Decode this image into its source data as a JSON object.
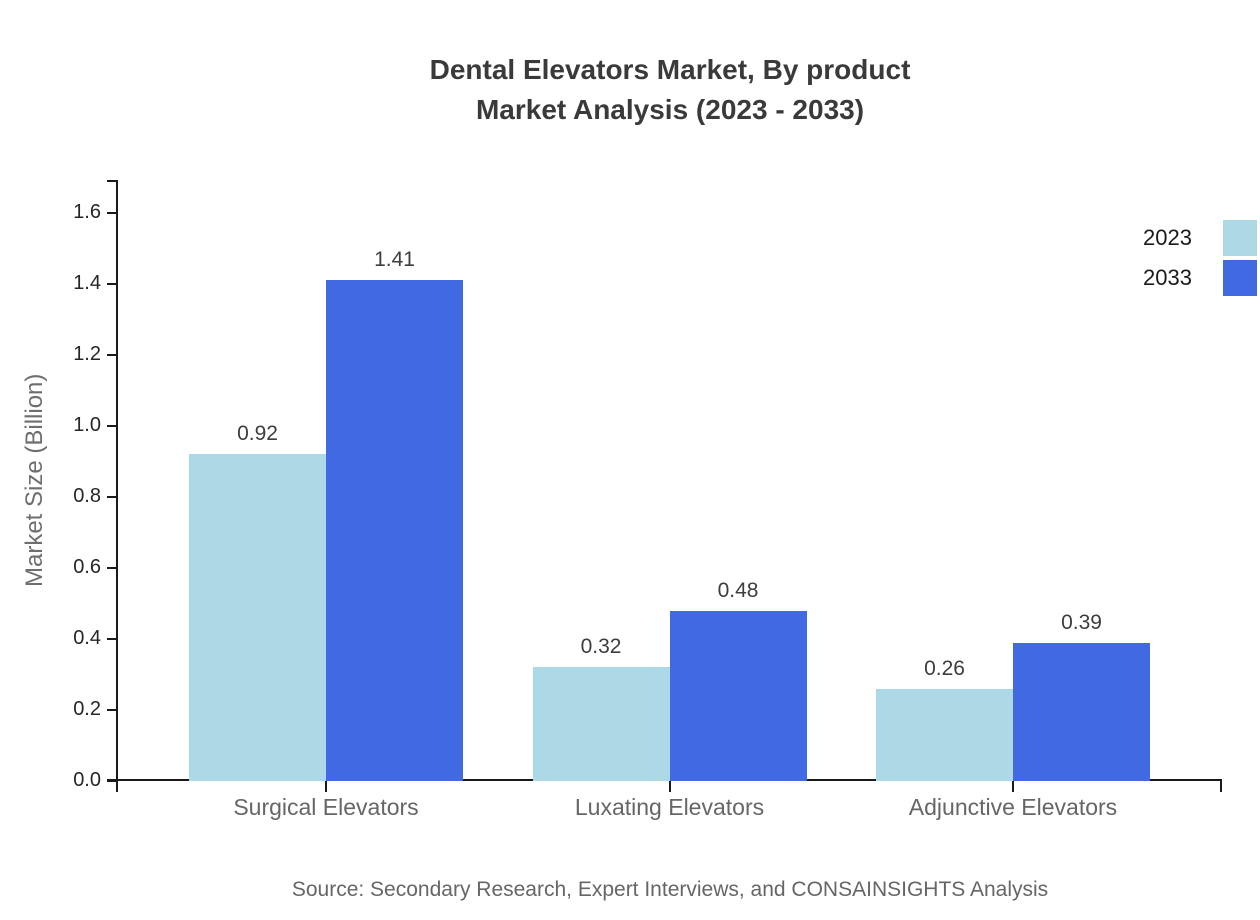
{
  "title": {
    "line1": "Dental Elevators Market, By product",
    "line2": "Market Analysis (2023 - 2033)"
  },
  "ylabel": "Market Size (Billion)",
  "source": "Source: Secondary Research, Expert Interviews, and CONSAINSIGHTS Analysis",
  "legend": [
    {
      "label": "2023",
      "color": "#add8e6"
    },
    {
      "label": "2033",
      "color": "#4169e1"
    }
  ],
  "colors": {
    "series_2023": "#add8e6",
    "series_2033": "#4169e1",
    "axis": "#1a1a1a",
    "title_text": "#3a3a3a",
    "tick_text": "#262626",
    "category_text": "#666666",
    "muted_text": "#6e6e6e"
  },
  "chart_data": {
    "type": "bar",
    "title": "Dental Elevators Market, By product Market Analysis (2023 - 2033)",
    "xlabel": "",
    "ylabel": "Market Size (Billion)",
    "categories": [
      "Surgical Elevators",
      "Luxating Elevators",
      "Adjunctive Elevators"
    ],
    "series": [
      {
        "name": "2023",
        "values": [
          0.92,
          0.32,
          0.26
        ]
      },
      {
        "name": "2033",
        "values": [
          1.41,
          0.48,
          0.39
        ]
      }
    ],
    "yticks": [
      0.0,
      0.2,
      0.4,
      0.6,
      0.8,
      1.0,
      1.2,
      1.4,
      1.6
    ],
    "ylim": [
      0,
      1.69
    ],
    "grid": false,
    "legend_position": "top-right",
    "bar_value_labels_shown": true
  }
}
